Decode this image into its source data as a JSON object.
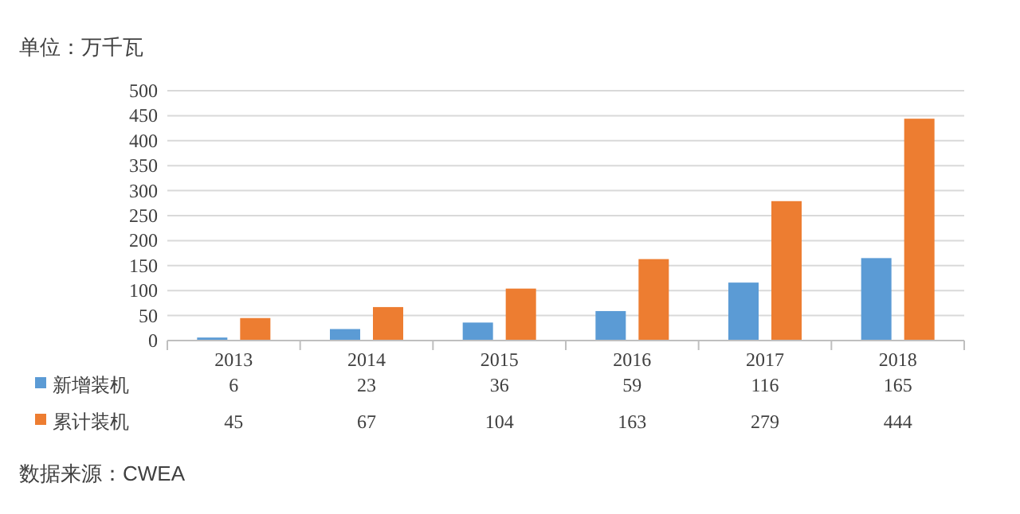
{
  "chart_data": {
    "type": "bar",
    "ylabel": "单位：万千瓦",
    "categories": [
      "2013",
      "2014",
      "2015",
      "2016",
      "2017",
      "2018"
    ],
    "series": [
      {
        "name": "新增装机",
        "color": "#5b9bd5",
        "values": [
          6,
          23,
          36,
          59,
          116,
          165
        ]
      },
      {
        "name": "累计装机",
        "color": "#ed7d31",
        "values": [
          45,
          67,
          104,
          163,
          279,
          444
        ]
      }
    ],
    "ylim": [
      0,
      500
    ],
    "yticks": [
      0,
      50,
      100,
      150,
      200,
      250,
      300,
      350,
      400,
      450,
      500
    ],
    "grid": "y",
    "legend": "bottom left",
    "data_labels": true,
    "annotations": [
      "数据来源：CWEA"
    ]
  }
}
